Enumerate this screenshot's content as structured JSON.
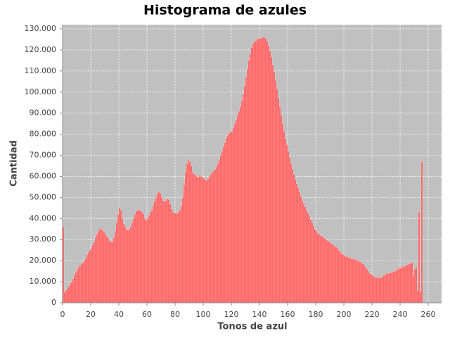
{
  "chart_data": {
    "type": "histogram",
    "title": "Histograma de azules",
    "xlabel": "Tonos de azul",
    "ylabel": "Cantidad",
    "bins": [
      0,
      1,
      2,
      3,
      4,
      5,
      6,
      7,
      8,
      9,
      10,
      11,
      12,
      13,
      14,
      15,
      16,
      17,
      18,
      19,
      20,
      21,
      22,
      23,
      24,
      25,
      26,
      27,
      28,
      29,
      30,
      31,
      32,
      33,
      34,
      35,
      36,
      37,
      38,
      39,
      40,
      41,
      42,
      43,
      44,
      45,
      46,
      47,
      48,
      49,
      50,
      51,
      52,
      53,
      54,
      55,
      56,
      57,
      58,
      59,
      60,
      61,
      62,
      63,
      64,
      65,
      66,
      67,
      68,
      69,
      70,
      71,
      72,
      73,
      74,
      75,
      76,
      77,
      78,
      79,
      80,
      81,
      82,
      83,
      84,
      85,
      86,
      87,
      88,
      89,
      90,
      91,
      92,
      93,
      94,
      95,
      96,
      97,
      98,
      99,
      100,
      101,
      102,
      103,
      104,
      105,
      106,
      107,
      108,
      109,
      110,
      111,
      112,
      113,
      114,
      115,
      116,
      117,
      118,
      119,
      120,
      121,
      122,
      123,
      124,
      125,
      126,
      127,
      128,
      129,
      130,
      131,
      132,
      133,
      134,
      135,
      136,
      137,
      138,
      139,
      140,
      141,
      142,
      143,
      144,
      145,
      146,
      147,
      148,
      149,
      150,
      151,
      152,
      153,
      154,
      155,
      156,
      157,
      158,
      159,
      160,
      161,
      162,
      163,
      164,
      165,
      166,
      167,
      168,
      169,
      170,
      171,
      172,
      173,
      174,
      175,
      176,
      177,
      178,
      179,
      180,
      181,
      182,
      183,
      184,
      185,
      186,
      187,
      188,
      189,
      190,
      191,
      192,
      193,
      194,
      195,
      196,
      197,
      198,
      199,
      200,
      201,
      202,
      203,
      204,
      205,
      206,
      207,
      208,
      209,
      210,
      211,
      212,
      213,
      214,
      215,
      216,
      217,
      218,
      219,
      220,
      221,
      222,
      223,
      224,
      225,
      226,
      227,
      228,
      229,
      230,
      231,
      232,
      233,
      234,
      235,
      236,
      237,
      238,
      239,
      240,
      241,
      242,
      243,
      244,
      245,
      246,
      247,
      248,
      249,
      250,
      251,
      252,
      253,
      254,
      255,
      256
    ],
    "values": [
      36000,
      5000,
      6000,
      7000,
      8000,
      9000,
      10000,
      11500,
      13000,
      14500,
      16000,
      17000,
      18000,
      18500,
      19000,
      20000,
      21000,
      23000,
      24000,
      25000,
      26000,
      27500,
      29000,
      31000,
      32500,
      34000,
      35000,
      35000,
      34500,
      33500,
      32500,
      31500,
      30500,
      29500,
      29000,
      29000,
      31000,
      34000,
      38000,
      42000,
      45000,
      44000,
      40000,
      37500,
      36000,
      35000,
      34500,
      35000,
      36000,
      38000,
      40000,
      42000,
      43500,
      44000,
      44000,
      43500,
      43000,
      42000,
      40000,
      39000,
      40000,
      41500,
      43000,
      44000,
      46000,
      48000,
      50000,
      52000,
      52500,
      52000,
      50000,
      48500,
      48000,
      48500,
      49500,
      49000,
      47000,
      44500,
      43000,
      42500,
      42500,
      42500,
      43000,
      44000,
      46000,
      50000,
      56000,
      62000,
      66000,
      68000,
      67000,
      65000,
      62000,
      61000,
      60500,
      60000,
      59500,
      60500,
      60000,
      59500,
      59000,
      58500,
      58000,
      59000,
      60000,
      61000,
      62000,
      62500,
      63500,
      64500,
      66000,
      68000,
      70000,
      72000,
      74000,
      76000,
      78000,
      79500,
      80500,
      81000,
      81500,
      83000,
      85000,
      87000,
      89000,
      91000,
      93000,
      96000,
      99000,
      103000,
      107000,
      111000,
      115000,
      118000,
      121000,
      123000,
      124000,
      124500,
      125000,
      125500,
      125500,
      125500,
      126000,
      126000,
      125500,
      124000,
      122000,
      119500,
      116500,
      113000,
      109500,
      105500,
      101500,
      97000,
      93000,
      89000,
      85000,
      81500,
      78000,
      75000,
      72000,
      69000,
      66000,
      63500,
      61000,
      58500,
      56500,
      54500,
      52500,
      50500,
      48500,
      47000,
      45500,
      44000,
      42500,
      41000,
      39500,
      38000,
      36500,
      35000,
      34000,
      33000,
      32500,
      32000,
      31500,
      31000,
      30500,
      30000,
      29500,
      29000,
      28500,
      28000,
      27500,
      27000,
      26500,
      26000,
      25000,
      24000,
      23500,
      23000,
      22500,
      22000,
      22000,
      21500,
      21500,
      21000,
      21000,
      20500,
      20500,
      20000,
      20000,
      19500,
      19000,
      18500,
      18000,
      17000,
      16000,
      15000,
      14000,
      13500,
      13000,
      12500,
      12000,
      12000,
      12000,
      12000,
      12000,
      12500,
      13000,
      13500,
      14000,
      14000,
      14000,
      14500,
      14500,
      15000,
      15000,
      15500,
      16000,
      16500,
      16500,
      17000,
      17000,
      17500,
      18000,
      18000,
      18500,
      19000,
      19000,
      13000,
      16000,
      17000,
      6000,
      43000,
      5000,
      67000
    ],
    "color": "#ff5555",
    "xlim": [
      0,
      269.5
    ],
    "xticks": [
      0,
      20,
      40,
      60,
      80,
      100,
      120,
      140,
      160,
      180,
      200,
      220,
      240,
      260
    ],
    "ylim": [
      0,
      132000
    ],
    "yticks": [
      0,
      {
        "value": 10000,
        "label": "10.000"
      },
      {
        "value": 20000,
        "label": "20.000"
      },
      {
        "value": 30000,
        "label": "30.000"
      },
      {
        "value": 40000,
        "label": "40.000"
      },
      {
        "value": 50000,
        "label": "50.000"
      },
      {
        "value": 60000,
        "label": "60.000"
      },
      {
        "value": 70000,
        "label": "70.000"
      },
      {
        "value": 80000,
        "label": "80.000"
      },
      {
        "value": 90000,
        "label": "90.000"
      },
      {
        "value": 100000,
        "label": "100.000"
      },
      {
        "value": 110000,
        "label": "110.000"
      },
      {
        "value": 120000,
        "label": "120.000"
      },
      {
        "value": 130000,
        "label": "130.000"
      }
    ],
    "grid": true
  }
}
